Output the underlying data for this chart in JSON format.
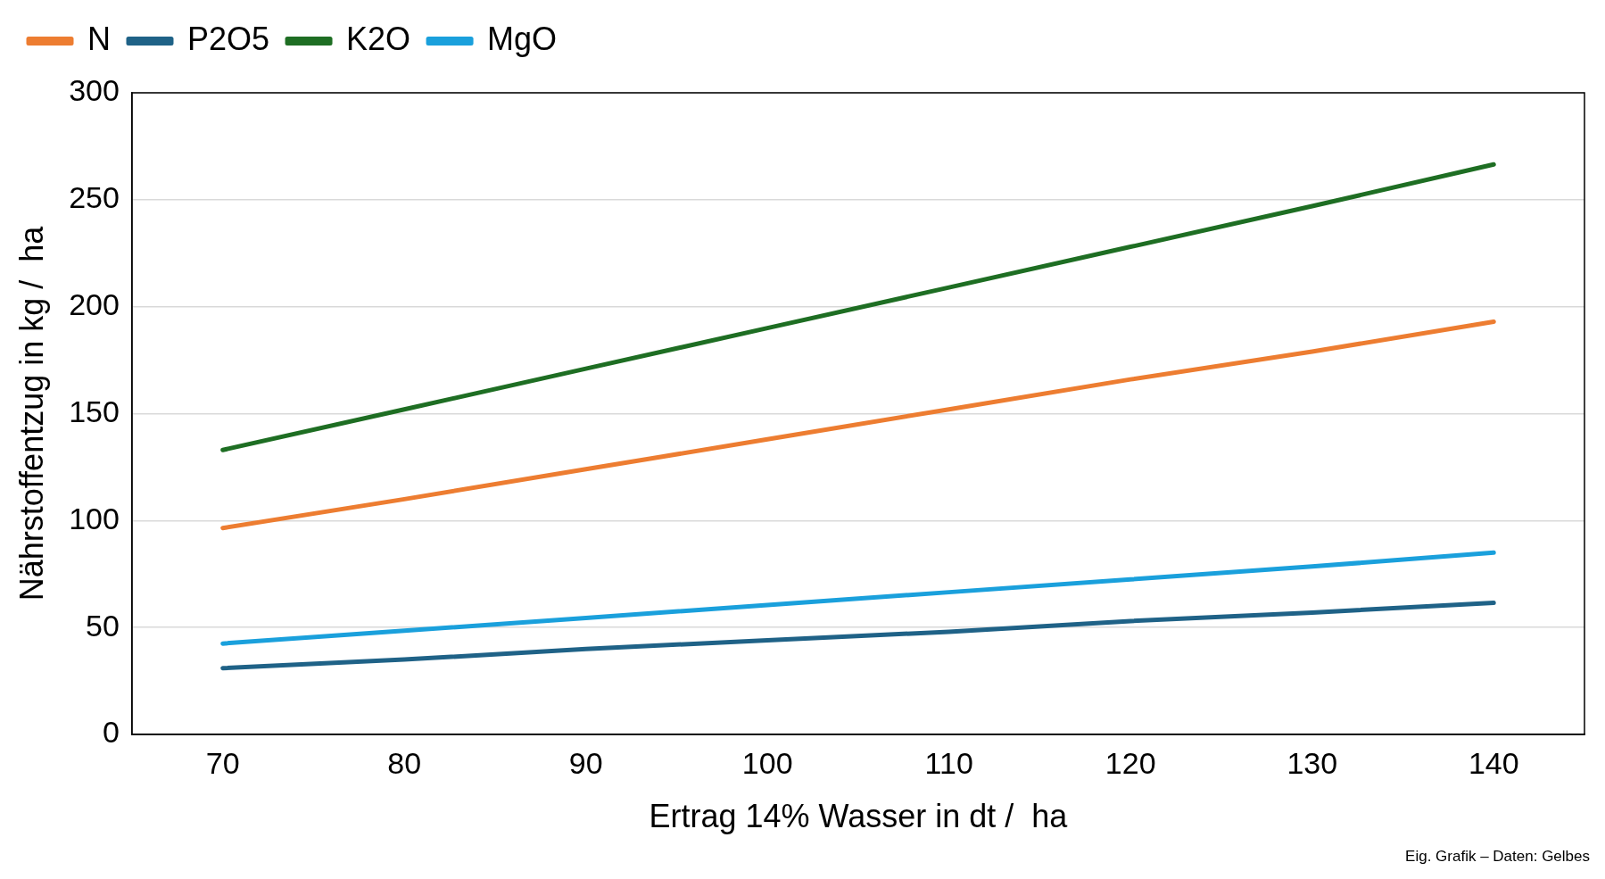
{
  "chart_data": {
    "type": "line",
    "xlabel": "Ertrag 14% Wasser in dt /  ha",
    "ylabel": "Nährstoffentzug in kg /  ha",
    "x": [
      70,
      80,
      90,
      100,
      110,
      120,
      130,
      140
    ],
    "series": [
      {
        "name": "N",
        "color": "#ed7d31",
        "values": [
          96.5,
          110,
          124,
          138,
          152,
          166,
          179,
          193
        ]
      },
      {
        "name": "P2O5",
        "color": "#1f6287",
        "values": [
          31,
          35,
          40,
          44,
          48,
          53,
          57,
          61.5
        ]
      },
      {
        "name": "K2O",
        "color": "#1e6e23",
        "values": [
          133,
          152,
          171,
          190,
          209,
          228,
          247,
          266.5
        ]
      },
      {
        "name": "MgO",
        "color": "#1aa0dc",
        "values": [
          42.5,
          48.5,
          54.5,
          60.5,
          66.5,
          72.5,
          78.5,
          85
        ]
      }
    ],
    "xlim": [
      65,
      145
    ],
    "xticks": [
      70,
      80,
      90,
      100,
      110,
      120,
      130,
      140
    ],
    "ylim": [
      0,
      300
    ],
    "yticks": [
      0,
      50,
      100,
      150,
      200,
      250,
      300
    ],
    "grid": "y",
    "legend": "top left",
    "marker": "none",
    "line_style": "solid",
    "annotations": [
      "Eig. Grafik – Daten: Gelbes"
    ]
  }
}
